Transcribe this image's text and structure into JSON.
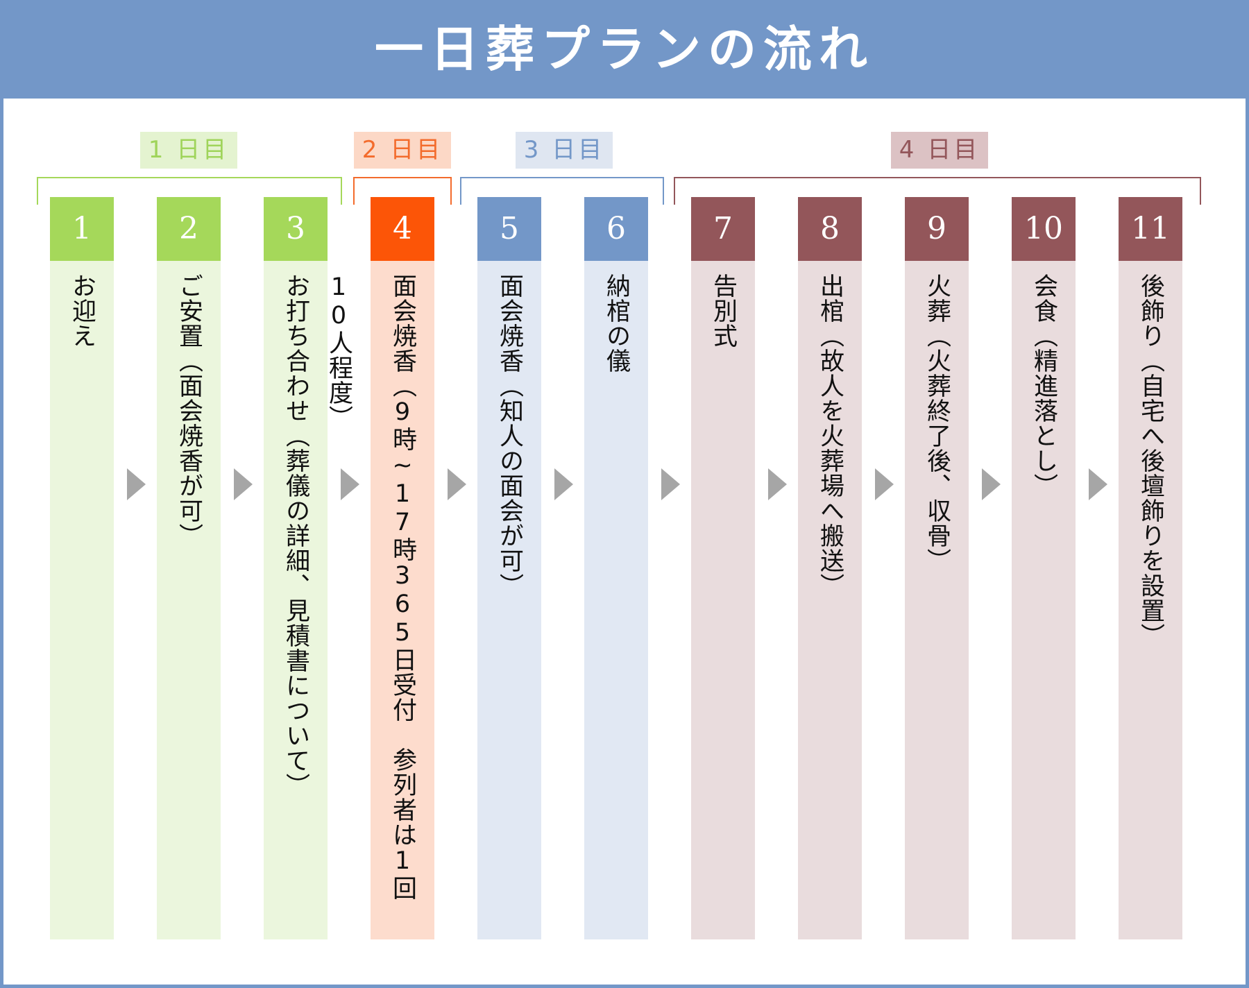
{
  "title": "一日葬プランの流れ",
  "colors": {
    "header": "#7397c8",
    "day1": "#a5d85a",
    "day2": "#fc5507",
    "day3": "#7397c8",
    "day4": "#93565a",
    "arrow": "#a6a6a6"
  },
  "days": [
    {
      "label": "1 日目"
    },
    {
      "label": "2 日目"
    },
    {
      "label": "3 日目"
    },
    {
      "label": "4 日目"
    }
  ],
  "steps": [
    {
      "number": "1",
      "text": "お迎え"
    },
    {
      "number": "2",
      "text": "ご安置（面会焼香が可）"
    },
    {
      "number": "3",
      "text": "お打ち合わせ（葬儀の詳細、見積書について）"
    },
    {
      "number": "4",
      "text": "面会焼香（9時~17時365日受付　参列者は1回10人程度）"
    },
    {
      "number": "5",
      "text": "面会焼香（知人の面会が可）"
    },
    {
      "number": "6",
      "text": "納棺の儀"
    },
    {
      "number": "7",
      "text": "告別式"
    },
    {
      "number": "8",
      "text": "出棺（故人を火葬場へ搬送）"
    },
    {
      "number": "9",
      "text": "火葬（火葬終了後、収骨）"
    },
    {
      "number": "10",
      "text": "会食（精進落とし）"
    },
    {
      "number": "11",
      "text": "後飾り（自宅へ後壇飾りを設置）"
    }
  ]
}
